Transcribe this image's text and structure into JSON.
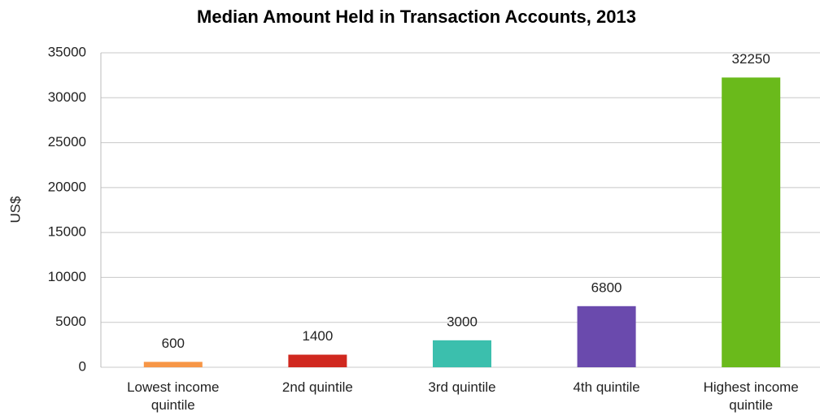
{
  "chart_data": {
    "type": "bar",
    "title": "Median Amount Held in Transaction Accounts, 2013",
    "ylabel": "US$",
    "categories": [
      "Lowest income quintile",
      "2nd quintile",
      "3rd quintile",
      "4th quintile",
      "Highest income quintile"
    ],
    "values": [
      600,
      1400,
      3000,
      6800,
      32250
    ],
    "colors": [
      "#f79646",
      "#d0281f",
      "#3bbfad",
      "#6a4aad",
      "#6aba1b"
    ],
    "ylim": [
      0,
      35000
    ],
    "yticks": [
      0,
      5000,
      10000,
      15000,
      20000,
      25000,
      30000,
      35000
    ],
    "grid": true
  }
}
